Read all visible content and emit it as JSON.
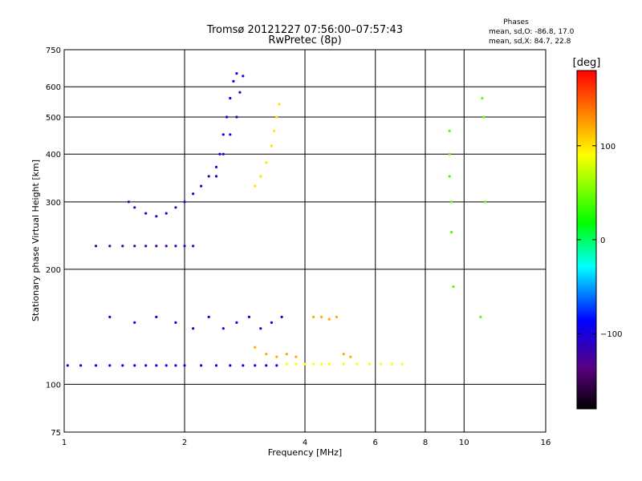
{
  "chart_data": {
    "type": "scatter",
    "title_line1": "Tromsø 20121227 07:56:00–07:57:43",
    "title_line2": "RwPretec (8p)",
    "xlabel": "Frequency [MHz]",
    "ylabel": "Stationary phase Virtual Height [km]",
    "x_scale": "log",
    "y_scale": "log",
    "xlim": [
      1,
      16
    ],
    "ylim": [
      75,
      750
    ],
    "x_ticks": [
      1,
      2,
      4,
      6,
      8,
      10,
      16
    ],
    "x_tick_labels": [
      "1",
      "2",
      "4",
      "6",
      "8",
      "10",
      "16"
    ],
    "y_ticks": [
      75,
      100,
      200,
      300,
      400,
      500,
      600,
      750
    ],
    "y_tick_labels": [
      "75",
      "100",
      "200",
      "300",
      "400",
      "500",
      "600",
      "750"
    ],
    "grid": true,
    "stats": {
      "title": "Phases",
      "line1": "mean, sd,O:  -86.8, 17.0",
      "line2": "mean, sd,X:  84.7, 22.8"
    },
    "colorbar": {
      "label": "[deg]",
      "range": [
        -180,
        180
      ],
      "ticks": [
        100,
        0,
        -100
      ],
      "tick_labels": [
        "100",
        "0",
        "−100"
      ],
      "colormap": [
        "#000000",
        "#5a0080",
        "#0000ff",
        "#00ffff",
        "#00ff00",
        "#ffff00",
        "#ff0000"
      ]
    },
    "echo_traces": [
      {
        "name": "",
        "phase_deg": -100,
        "points": [
          [
            1.02,
            112
          ],
          [
            1.1,
            112
          ],
          [
            1.2,
            112
          ],
          [
            1.3,
            112
          ],
          [
            1.4,
            112
          ],
          [
            1.5,
            112
          ],
          [
            1.6,
            112
          ],
          [
            1.7,
            112
          ],
          [
            1.8,
            112
          ],
          [
            1.9,
            112
          ],
          [
            2.0,
            112
          ],
          [
            2.2,
            112
          ],
          [
            2.4,
            112
          ],
          [
            2.6,
            112
          ],
          [
            2.8,
            112
          ],
          [
            3.0,
            112
          ],
          [
            3.2,
            112
          ],
          [
            3.4,
            112
          ]
        ]
      },
      {
        "name": "",
        "phase_deg": 90,
        "points": [
          [
            3.6,
            113
          ],
          [
            3.8,
            113
          ],
          [
            4.0,
            113
          ],
          [
            4.2,
            113
          ],
          [
            4.4,
            113
          ],
          [
            4.6,
            113
          ],
          [
            5.0,
            113
          ],
          [
            5.4,
            113
          ],
          [
            5.8,
            113
          ],
          [
            6.2,
            113
          ],
          [
            6.6,
            113
          ],
          [
            7.0,
            113
          ]
        ]
      },
      {
        "name": "",
        "phase_deg": -110,
        "points": [
          [
            1.45,
            300
          ],
          [
            1.5,
            290
          ],
          [
            1.6,
            280
          ],
          [
            1.7,
            275
          ],
          [
            1.8,
            280
          ],
          [
            1.9,
            290
          ],
          [
            2.0,
            300
          ],
          [
            2.1,
            315
          ],
          [
            2.2,
            330
          ],
          [
            2.3,
            350
          ],
          [
            2.4,
            370
          ],
          [
            2.5,
            400
          ],
          [
            2.6,
            450
          ],
          [
            2.7,
            500
          ],
          [
            2.75,
            580
          ],
          [
            2.8,
            640
          ]
        ]
      },
      {
        "name": "",
        "phase_deg": -95,
        "points": [
          [
            2.4,
            350
          ],
          [
            2.45,
            400
          ],
          [
            2.5,
            450
          ],
          [
            2.55,
            500
          ],
          [
            2.6,
            560
          ],
          [
            2.65,
            620
          ],
          [
            2.7,
            650
          ]
        ]
      },
      {
        "name": "",
        "phase_deg": 100,
        "points": [
          [
            3.0,
            330
          ],
          [
            3.1,
            350
          ],
          [
            3.2,
            380
          ],
          [
            3.3,
            420
          ],
          [
            3.35,
            460
          ],
          [
            3.4,
            500
          ],
          [
            3.45,
            540
          ]
        ]
      },
      {
        "name": "",
        "phase_deg": -120,
        "points": [
          [
            1.2,
            230
          ],
          [
            1.3,
            230
          ],
          [
            1.4,
            230
          ],
          [
            1.5,
            230
          ],
          [
            1.6,
            230
          ],
          [
            1.7,
            230
          ],
          [
            1.8,
            230
          ],
          [
            1.9,
            230
          ],
          [
            2.0,
            230
          ],
          [
            2.1,
            230
          ]
        ]
      },
      {
        "name": "",
        "phase_deg": -100,
        "points": [
          [
            1.3,
            150
          ],
          [
            1.5,
            145
          ],
          [
            1.7,
            150
          ],
          [
            1.9,
            145
          ],
          [
            2.1,
            140
          ],
          [
            2.3,
            150
          ],
          [
            2.5,
            140
          ],
          [
            2.7,
            145
          ],
          [
            2.9,
            150
          ],
          [
            3.1,
            140
          ],
          [
            3.3,
            145
          ],
          [
            3.5,
            150
          ]
        ]
      },
      {
        "name": "",
        "phase_deg": 40,
        "points": [
          [
            9.2,
            460
          ],
          [
            9.2,
            400
          ],
          [
            9.2,
            350
          ],
          [
            9.3,
            300
          ],
          [
            9.3,
            250
          ],
          [
            9.4,
            180
          ],
          [
            11.1,
            560
          ],
          [
            11.2,
            500
          ],
          [
            11.3,
            300
          ],
          [
            11.0,
            150
          ]
        ]
      },
      {
        "name": "",
        "phase_deg": 120,
        "points": [
          [
            3.0,
            125
          ],
          [
            3.2,
            120
          ],
          [
            3.4,
            118
          ],
          [
            3.6,
            120
          ],
          [
            3.8,
            118
          ],
          [
            4.2,
            150
          ],
          [
            4.4,
            150
          ],
          [
            4.6,
            148
          ],
          [
            4.8,
            150
          ],
          [
            5.0,
            120
          ],
          [
            5.2,
            118
          ]
        ]
      }
    ]
  }
}
